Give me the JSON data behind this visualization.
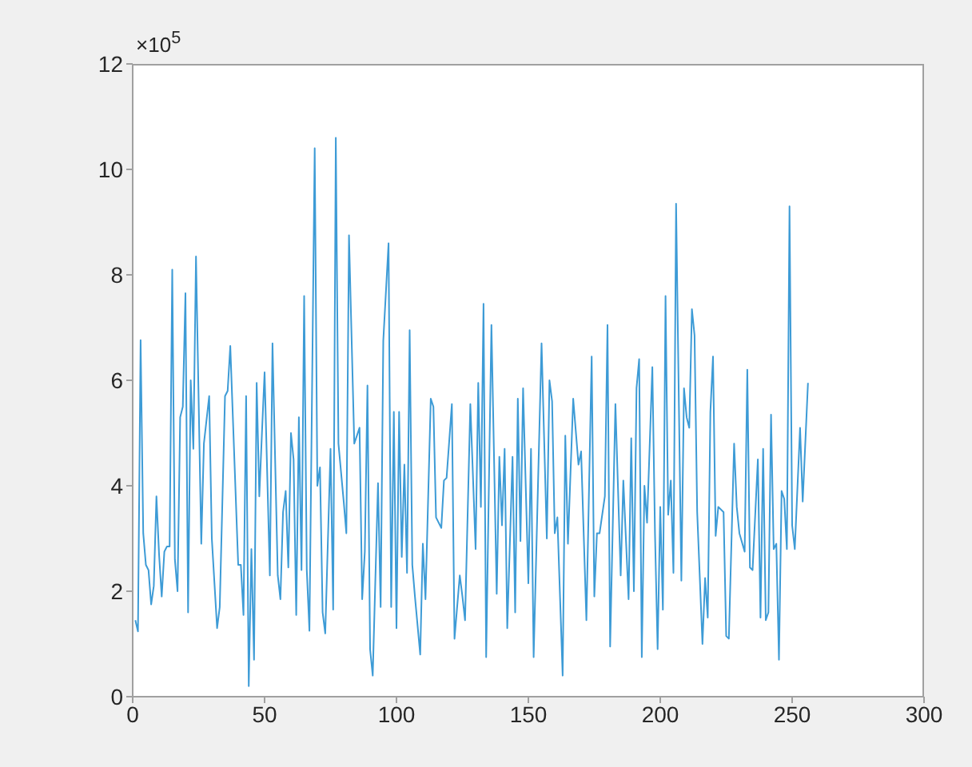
{
  "chart_data": {
    "type": "line",
    "annotations": [
      "×10$^{5}$"
    ],
    "x": [
      1,
      2,
      3,
      4,
      5,
      6,
      7,
      8,
      9,
      10,
      11,
      12,
      13,
      14,
      15,
      16,
      17,
      18,
      19,
      20,
      21,
      22,
      23,
      24,
      26,
      27,
      29,
      30,
      32,
      33,
      35,
      36,
      37,
      40,
      41,
      42,
      43,
      44,
      45,
      46,
      47,
      48,
      49,
      50,
      52,
      53,
      55,
      56,
      57,
      58,
      59,
      60,
      61,
      62,
      63,
      64,
      65,
      66,
      67,
      69,
      70,
      71,
      72,
      73,
      75,
      76,
      77,
      78,
      80,
      81,
      82,
      84,
      86,
      87,
      88,
      89,
      90,
      91,
      93,
      94,
      95,
      97,
      98,
      99,
      100,
      101,
      102,
      103,
      104,
      105,
      106,
      107,
      109,
      110,
      111,
      113,
      114,
      115,
      117,
      118,
      119,
      121,
      122,
      124,
      125,
      126,
      128,
      130,
      131,
      132,
      133,
      134,
      136,
      138,
      139,
      140,
      141,
      142,
      144,
      145,
      146,
      147,
      148,
      150,
      151,
      152,
      155,
      157,
      158,
      159,
      160,
      161,
      163,
      164,
      165,
      167,
      169,
      170,
      172,
      174,
      175,
      176,
      177,
      179,
      180,
      181,
      183,
      185,
      186,
      188,
      189,
      190,
      191,
      192,
      193,
      194,
      195,
      197,
      198,
      199,
      200,
      201,
      202,
      203,
      204,
      205,
      206,
      208,
      209,
      210,
      211,
      212,
      213,
      214,
      216,
      217,
      218,
      219,
      220,
      221,
      222,
      224,
      225,
      226,
      228,
      229,
      230,
      232,
      233,
      234,
      235,
      237,
      238,
      239,
      240,
      241,
      242,
      243,
      244,
      245,
      246,
      247,
      248,
      249,
      250,
      251,
      253,
      254,
      256
    ],
    "series": [
      {
        "color": "#3d9bd6",
        "values": [
          1.45,
          1.24,
          6.76,
          3.1,
          2.5,
          2.4,
          1.75,
          2.1,
          3.8,
          2.7,
          1.9,
          2.75,
          2.85,
          2.85,
          8.1,
          2.6,
          2.0,
          5.3,
          5.5,
          7.65,
          1.6,
          6.0,
          4.7,
          8.35,
          2.9,
          4.8,
          5.7,
          3.0,
          1.3,
          1.7,
          5.7,
          5.8,
          6.65,
          2.5,
          2.5,
          1.55,
          5.7,
          0.2,
          2.8,
          0.7,
          5.95,
          3.8,
          5.0,
          6.15,
          2.3,
          6.7,
          2.3,
          1.85,
          3.5,
          3.9,
          2.45,
          5.0,
          4.5,
          1.55,
          5.3,
          2.4,
          7.6,
          2.4,
          1.25,
          10.4,
          4.0,
          4.35,
          1.6,
          1.2,
          4.7,
          1.65,
          10.6,
          4.8,
          3.7,
          3.1,
          8.75,
          4.8,
          5.1,
          1.85,
          2.75,
          5.9,
          0.9,
          0.4,
          4.05,
          1.7,
          6.75,
          8.6,
          1.7,
          5.4,
          1.3,
          5.4,
          2.65,
          4.4,
          2.35,
          6.95,
          2.5,
          1.9,
          0.8,
          2.9,
          1.85,
          5.65,
          5.5,
          3.4,
          3.2,
          4.1,
          4.15,
          5.55,
          1.1,
          2.3,
          1.9,
          1.45,
          5.55,
          2.8,
          5.95,
          3.6,
          7.45,
          0.75,
          7.05,
          1.95,
          4.55,
          3.25,
          4.7,
          1.3,
          4.55,
          1.6,
          5.65,
          2.95,
          5.85,
          2.15,
          4.7,
          0.75,
          6.7,
          3.0,
          6.0,
          5.6,
          3.1,
          3.4,
          0.4,
          4.95,
          2.9,
          5.65,
          4.4,
          4.65,
          1.45,
          6.45,
          1.9,
          3.1,
          3.1,
          3.8,
          7.05,
          0.95,
          5.55,
          2.3,
          4.1,
          1.85,
          4.9,
          2.0,
          5.85,
          6.4,
          0.75,
          4.0,
          3.3,
          6.25,
          3.1,
          0.9,
          3.6,
          1.65,
          7.6,
          3.45,
          4.1,
          2.35,
          9.35,
          2.2,
          5.85,
          5.3,
          5.1,
          7.35,
          6.85,
          3.5,
          1.0,
          2.25,
          1.5,
          5.4,
          6.45,
          3.05,
          3.6,
          3.5,
          1.15,
          1.1,
          4.8,
          3.6,
          3.1,
          2.75,
          6.2,
          2.45,
          2.4,
          4.5,
          1.5,
          4.7,
          1.45,
          1.6,
          5.35,
          2.8,
          2.9,
          0.7,
          3.9,
          3.75,
          2.8,
          9.3,
          3.25,
          2.8,
          5.1,
          3.7,
          5.95
        ]
      }
    ],
    "xlim": [
      0,
      300
    ],
    "xticks": [
      0,
      50,
      100,
      150,
      200,
      250,
      300
    ],
    "ylim": [
      0,
      12
    ],
    "yticks": [
      0,
      2,
      4,
      6,
      8,
      10,
      12
    ],
    "grid": false,
    "legend": false,
    "marker": "none",
    "line_style": "solid"
  }
}
